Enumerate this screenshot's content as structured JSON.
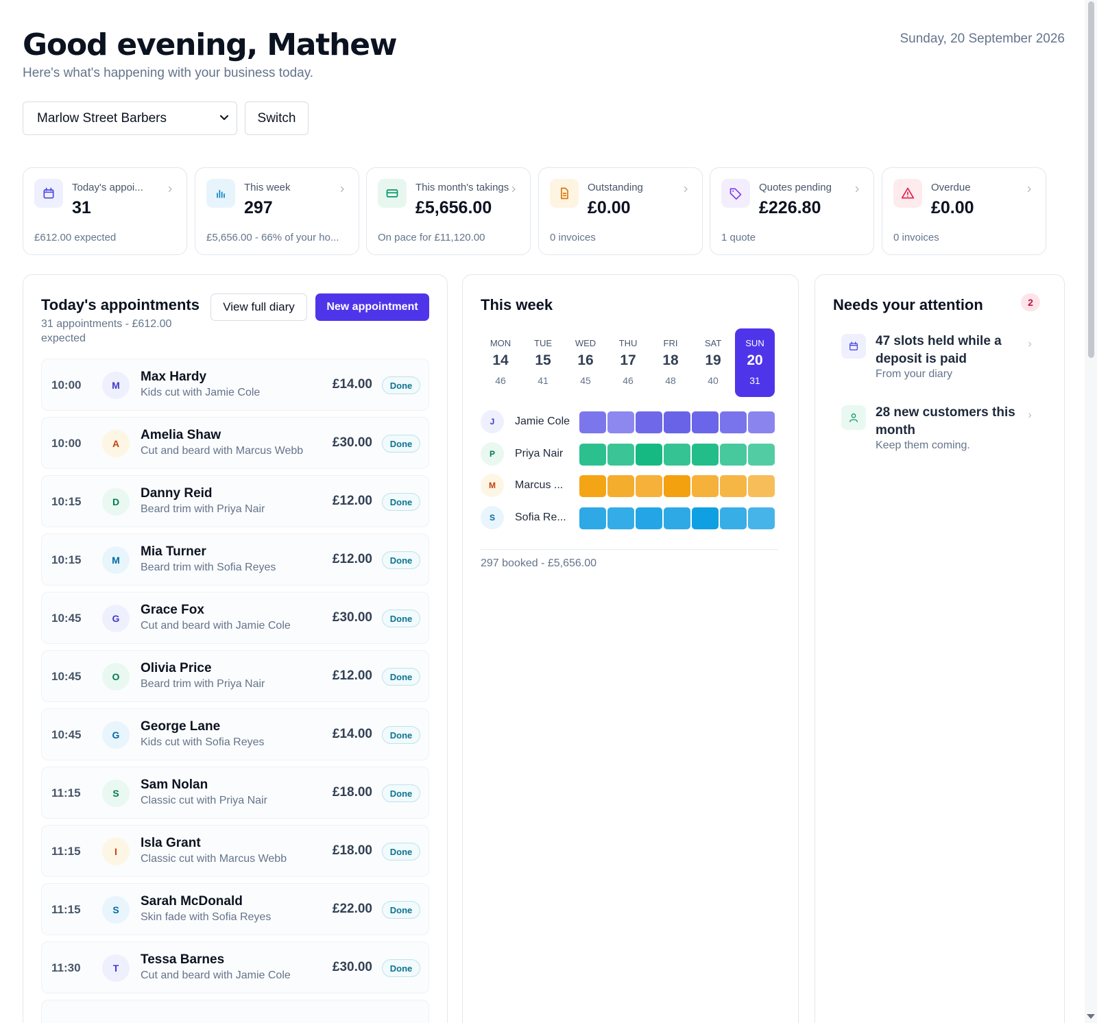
{
  "header": {
    "greeting": "Good evening, Mathew",
    "subtitle": "Here's what's happening with your business today.",
    "date": "Sunday, 20 September 2026"
  },
  "business_select": {
    "selected": "Marlow Street Barbers",
    "switch_label": "Switch"
  },
  "stats": [
    {
      "label": "Today's appoi...",
      "value": "31",
      "footer": "£612.00 expected",
      "icon": "calendar-icon",
      "color": "#4f46e5",
      "bg": "#eef0fe"
    },
    {
      "label": "This week",
      "value": "297",
      "footer": "£5,656.00 - 66% of your ho...",
      "icon": "bar-chart-icon",
      "color": "#0284c7",
      "bg": "#e8f4fb"
    },
    {
      "label": "This month's takings",
      "value": "£5,656.00",
      "footer": "On pace for £11,120.00",
      "icon": "credit-card-icon",
      "color": "#059669",
      "bg": "#e7f7f0"
    },
    {
      "label": "Outstanding",
      "value": "£0.00",
      "footer": "0 invoices",
      "icon": "document-icon",
      "color": "#d97706",
      "bg": "#fef4e2"
    },
    {
      "label": "Quotes pending",
      "value": "£226.80",
      "footer": "1 quote",
      "icon": "tag-icon",
      "color": "#7c3aed",
      "bg": "#f3eefe"
    },
    {
      "label": "Overdue",
      "value": "£0.00",
      "footer": "0 invoices",
      "icon": "warning-icon",
      "color": "#e11d48",
      "bg": "#fdebee"
    }
  ],
  "appointments": {
    "title": "Today's appointments",
    "subtitle": "31 appointments - £612.00 expected",
    "view_diary_label": "View full diary",
    "new_label": "New appointment",
    "items": [
      {
        "time": "10:00",
        "initial": "M",
        "name": "Max Hardy",
        "service": "Kids cut with Jamie Cole",
        "price": "£14.00",
        "status": "Done",
        "av_bg": "#eef0fe",
        "av_fg": "#4338ca"
      },
      {
        "time": "10:00",
        "initial": "A",
        "name": "Amelia Shaw",
        "service": "Cut and beard with Marcus Webb",
        "price": "£30.00",
        "status": "Done",
        "av_bg": "#fef6e4",
        "av_fg": "#c2410c"
      },
      {
        "time": "10:15",
        "initial": "D",
        "name": "Danny Reid",
        "service": "Beard trim with Priya Nair",
        "price": "£12.00",
        "status": "Done",
        "av_bg": "#e9f8f1",
        "av_fg": "#047857"
      },
      {
        "time": "10:15",
        "initial": "M",
        "name": "Mia Turner",
        "service": "Beard trim with Sofia Reyes",
        "price": "£12.00",
        "status": "Done",
        "av_bg": "#e8f5fc",
        "av_fg": "#0369a1"
      },
      {
        "time": "10:45",
        "initial": "G",
        "name": "Grace Fox",
        "service": "Cut and beard with Jamie Cole",
        "price": "£30.00",
        "status": "Done",
        "av_bg": "#eef0fe",
        "av_fg": "#4338ca"
      },
      {
        "time": "10:45",
        "initial": "O",
        "name": "Olivia Price",
        "service": "Beard trim with Priya Nair",
        "price": "£12.00",
        "status": "Done",
        "av_bg": "#e9f8f1",
        "av_fg": "#047857"
      },
      {
        "time": "10:45",
        "initial": "G",
        "name": "George Lane",
        "service": "Kids cut with Sofia Reyes",
        "price": "£14.00",
        "status": "Done",
        "av_bg": "#e8f5fc",
        "av_fg": "#0369a1"
      },
      {
        "time": "11:15",
        "initial": "S",
        "name": "Sam Nolan",
        "service": "Classic cut with Priya Nair",
        "price": "£18.00",
        "status": "Done",
        "av_bg": "#e9f8f1",
        "av_fg": "#047857"
      },
      {
        "time": "11:15",
        "initial": "I",
        "name": "Isla Grant",
        "service": "Classic cut with Marcus Webb",
        "price": "£18.00",
        "status": "Done",
        "av_bg": "#fef6e4",
        "av_fg": "#c2410c"
      },
      {
        "time": "11:15",
        "initial": "S",
        "name": "Sarah McDonald",
        "service": "Skin fade with Sofia Reyes",
        "price": "£22.00",
        "status": "Done",
        "av_bg": "#e8f5fc",
        "av_fg": "#0369a1"
      },
      {
        "time": "11:30",
        "initial": "T",
        "name": "Tessa Barnes",
        "service": "Cut and beard with Jamie Cole",
        "price": "£30.00",
        "status": "Done",
        "av_bg": "#eef0fe",
        "av_fg": "#4338ca"
      }
    ]
  },
  "week": {
    "title": "This week",
    "days": [
      {
        "name": "MON",
        "date": "14",
        "count": "46",
        "active": false
      },
      {
        "name": "TUE",
        "date": "15",
        "count": "41",
        "active": false
      },
      {
        "name": "WED",
        "date": "16",
        "count": "45",
        "active": false
      },
      {
        "name": "THU",
        "date": "17",
        "count": "46",
        "active": false
      },
      {
        "name": "FRI",
        "date": "18",
        "count": "48",
        "active": false
      },
      {
        "name": "SAT",
        "date": "19",
        "count": "40",
        "active": false
      },
      {
        "name": "SUN",
        "date": "20",
        "count": "31",
        "active": true
      }
    ],
    "staff": [
      {
        "initial": "J",
        "name": "Jamie Cole",
        "av_bg": "#eef0fe",
        "av_fg": "#4338ca",
        "cells": [
          "#7c76ec",
          "#8d88ef",
          "#6f69ea",
          "#6963e8",
          "#6b65e9",
          "#7a74ec",
          "#8a85ee"
        ]
      },
      {
        "initial": "P",
        "name": "Priya Nair",
        "av_bg": "#e9f8f1",
        "av_fg": "#047857",
        "cells": [
          "#2cc08f",
          "#3bc597",
          "#16b981",
          "#36c394",
          "#23bd8a",
          "#48c99d",
          "#52cca3"
        ]
      },
      {
        "initial": "M",
        "name": "Marcus ...",
        "av_bg": "#fef6e4",
        "av_fg": "#c2410c",
        "cells": [
          "#f4a516",
          "#f5ad2e",
          "#f6b13a",
          "#f4a110",
          "#f6b13b",
          "#f6b646",
          "#f7bd59"
        ]
      },
      {
        "initial": "S",
        "name": "Sofia Re...",
        "av_bg": "#e8f5fc",
        "av_fg": "#0369a1",
        "cells": [
          "#2ea9e6",
          "#34ace7",
          "#24a6e6",
          "#2ea9e6",
          "#0f9fe3",
          "#38aee7",
          "#47b4e9"
        ]
      }
    ],
    "footer": "297 booked - £5,656.00"
  },
  "attention": {
    "title": "Needs your attention",
    "count": "2",
    "items": [
      {
        "title": "47 slots held while a deposit is paid",
        "subtitle": "From your diary",
        "icon": "calendar-icon",
        "color": "#4f46e5",
        "bg": "#eef0fe"
      },
      {
        "title": "28 new customers this month",
        "subtitle": "Keep them coming.",
        "icon": "user-icon",
        "color": "#059669",
        "bg": "#e9f8f1"
      }
    ]
  }
}
